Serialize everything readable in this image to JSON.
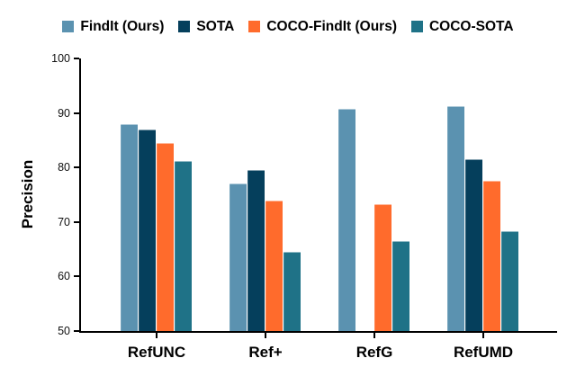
{
  "chart_data": {
    "type": "bar",
    "title": "",
    "xlabel": "",
    "ylabel": "Precision",
    "ylim": [
      50,
      100
    ],
    "yticks": [
      50,
      60,
      70,
      80,
      90,
      100
    ],
    "grid": false,
    "legend_position": "top",
    "categories": [
      "RefUNC",
      "Ref+",
      "RefG",
      "RefUMD"
    ],
    "series": [
      {
        "name": "FindIt (Ours)",
        "color": "#5B92B0",
        "values": [
          88.0,
          77.0,
          90.8,
          91.2
        ]
      },
      {
        "name": "SOTA",
        "color": "#053F5C",
        "values": [
          87.0,
          79.5,
          null,
          81.5
        ]
      },
      {
        "name": "COCO-FindIt (Ours)",
        "color": "#FF6B2C",
        "values": [
          84.5,
          74.0,
          73.2,
          77.5
        ]
      },
      {
        "name": "COCO-SOTA",
        "color": "#1F7287",
        "values": [
          81.2,
          64.5,
          66.5,
          68.3
        ]
      }
    ]
  },
  "colors": {
    "axis": "#000000",
    "text": "#000000",
    "background": "#ffffff"
  }
}
